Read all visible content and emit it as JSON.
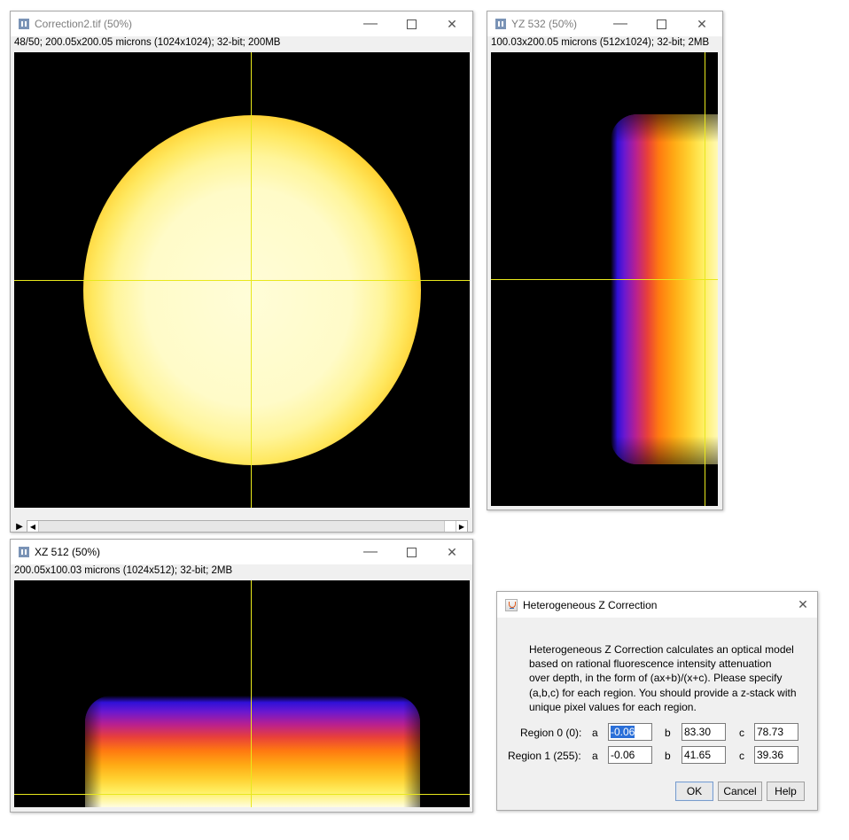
{
  "main_window": {
    "title": "Correction2.tif (50%)",
    "info": "48/50; 200.05x200.05 microns (1024x1024); 32-bit; 200MB"
  },
  "yz_window": {
    "title": "YZ 532 (50%)",
    "info": "100.03x200.05 microns (512x1024); 32-bit; 2MB"
  },
  "xz_window": {
    "title": "XZ 512 (50%)",
    "info": "200.05x100.03 microns (1024x512); 32-bit; 2MB"
  },
  "window_controls": {
    "minimize": "—",
    "close": "✕"
  },
  "scrollbar": {
    "play": "▶",
    "left": "◀",
    "right": "▶"
  },
  "dialog": {
    "title": "Heterogeneous Z Correction",
    "description_lines": [
      "Heterogeneous Z Correction calculates an optical model",
      "based on rational fluorescence intensity attenuation",
      "over depth, in the form of (ax+b)/(x+c). Please specify",
      "(a,b,c) for each region. You should provide a z-stack with",
      "unique pixel values for each region."
    ],
    "regions": [
      {
        "label": "Region 0 (0):",
        "a_label": "a",
        "a": "-0.06",
        "b_label": "b",
        "b": "83.30",
        "c_label": "c",
        "c": "78.73"
      },
      {
        "label": "Region 1 (255):",
        "a_label": "a",
        "a": "-0.06",
        "b_label": "b",
        "b": "41.65",
        "c_label": "c",
        "c": "39.36"
      }
    ],
    "buttons": {
      "ok": "OK",
      "cancel": "Cancel",
      "help": "Help"
    },
    "close": "✕"
  },
  "colors": {
    "crosshair": "#e8e81c",
    "canvas_bg": "#000000",
    "lut": "fire"
  }
}
